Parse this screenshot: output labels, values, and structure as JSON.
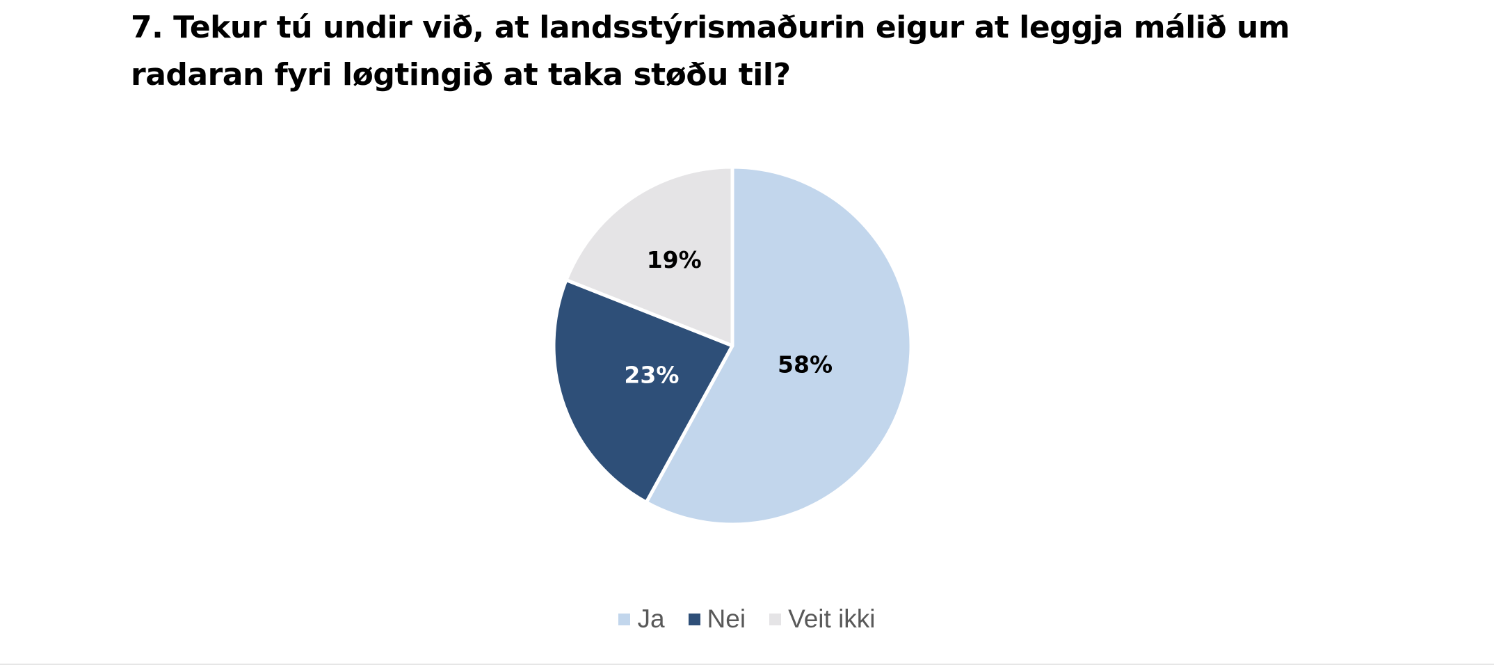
{
  "chart_data": {
    "type": "pie",
    "title": "7. Tekur tú undir við, at landsstýrismaðurin eigur at leggja málið um radaran fyri løgtingið at taka støðu til?",
    "categories": [
      "Ja",
      "Nei",
      "Veit ikki"
    ],
    "values": [
      58,
      23,
      19
    ],
    "data_labels": [
      "58%",
      "23%",
      "19%"
    ],
    "colors": [
      "#c2d6ec",
      "#2e4f78",
      "#e5e4e6"
    ],
    "label_colors": [
      "#000000",
      "#ffffff",
      "#000000"
    ],
    "start_angle": "12 o'clock",
    "direction": "clockwise",
    "legend_position": "bottom"
  }
}
